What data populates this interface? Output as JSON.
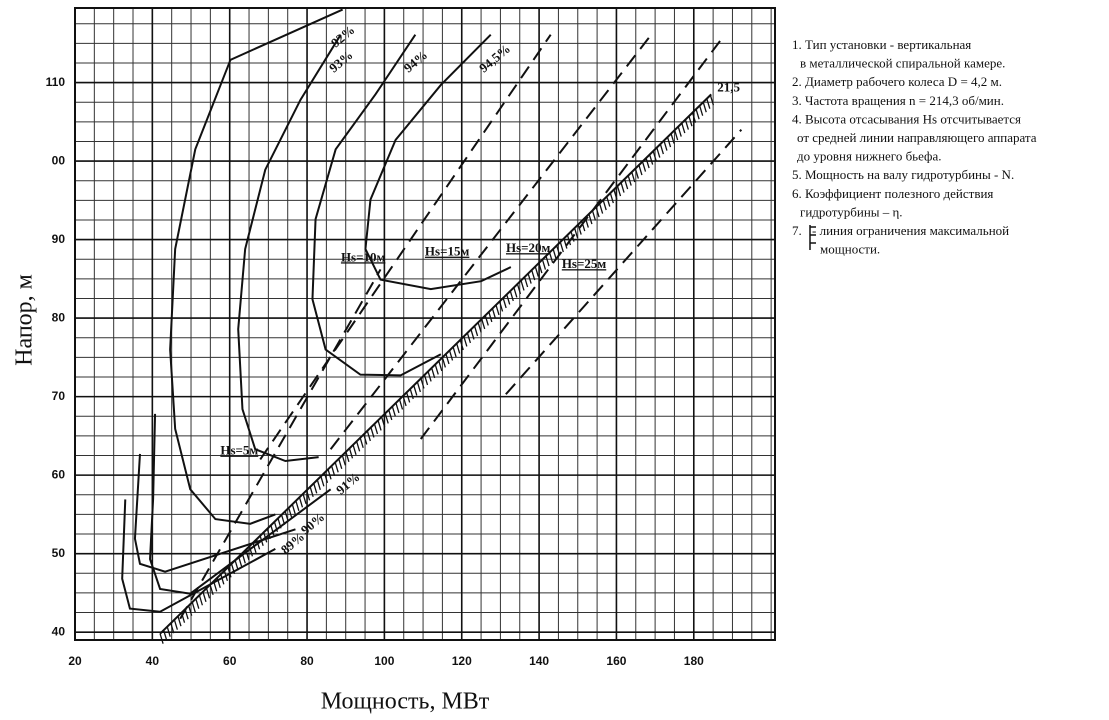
{
  "chart_data": {
    "type": "line",
    "x_label": "Мощность, МВт",
    "y_label": "Напор, м",
    "xlim": [
      20,
      201
    ],
    "ylim": [
      39,
      119.5
    ],
    "xticks": [
      20,
      40,
      60,
      80,
      100,
      120,
      140,
      160,
      180
    ],
    "yticks": [
      40,
      50,
      60,
      70,
      80,
      90,
      {
        "value": 100,
        "label": "00"
      },
      110
    ],
    "grid": true,
    "minor_grid": {
      "x": 5,
      "y": 2.5
    },
    "series": [
      {
        "name": "92%",
        "color": "#111",
        "dash": false,
        "x": [
          89.2,
          60.2,
          51.1,
          45.9,
          44.6,
          45.9,
          49.8,
          56.3,
          65.3,
          71.8
        ],
        "y": [
          119.3,
          112.9,
          101.5,
          88.8,
          76,
          65.9,
          58.2,
          54.4,
          53.8,
          55
        ]
      },
      {
        "name": "93%",
        "color": "#111",
        "dash": false,
        "x": [
          88.7,
          78.3,
          69.2,
          64,
          62.2,
          63.3,
          66.6,
          74.4,
          83
        ],
        "y": [
          116.1,
          107.8,
          98.9,
          88.8,
          78.6,
          68.4,
          63.3,
          61.8,
          62.3
        ]
      },
      {
        "name": "94%",
        "color": "#111",
        "dash": false,
        "x": [
          108,
          97.7,
          87.4,
          82.2,
          81.4,
          84.8,
          93.8,
          104.2,
          114.6
        ],
        "y": [
          116.1,
          108.5,
          101.5,
          92.6,
          82.4,
          76,
          72.8,
          72.7,
          75.4
        ]
      },
      {
        "name": "94,5%",
        "color": "#111",
        "dash": false,
        "x": [
          127.5,
          114.6,
          102.9,
          96.4,
          95.1,
          99,
          112,
          125,
          132.7
        ],
        "y": [
          116.1,
          109.7,
          102.7,
          95.1,
          88.8,
          84.9,
          83.7,
          84.7,
          86.5
        ]
      },
      {
        "name": "91%",
        "color": "#111",
        "dash": false,
        "x": [
          40.7,
          40.2,
          39.4,
          42,
          49.8,
          86.1
        ],
        "y": [
          67.8,
          57,
          49.3,
          45.5,
          44.9,
          58.2
        ]
      },
      {
        "name": "90%",
        "color": "#111",
        "dash": false,
        "x": [
          36.8,
          35.5,
          36.8,
          43.3,
          77
        ],
        "y": [
          62.7,
          51.9,
          48.7,
          47.7,
          53.1
        ]
      },
      {
        "name": "89%",
        "color": "#111",
        "dash": false,
        "x": [
          33,
          32.2,
          34.2,
          42,
          71.8
        ],
        "y": [
          56.9,
          46.8,
          43,
          42.6,
          50.6
        ]
      },
      {
        "name": "Hs=5м",
        "color": "#111",
        "dash": true,
        "x": [
          47.2,
          99
        ],
        "y": [
          41.7,
          86.2
        ]
      },
      {
        "name": "Hs=10м",
        "color": "#111",
        "dash": true,
        "x": [
          67.9,
          143
        ],
        "y": [
          62,
          116.1
        ]
      },
      {
        "name": "Hs=15м",
        "color": "#111",
        "dash": true,
        "x": [
          86.1,
          169
        ],
        "y": [
          63.3,
          116.1
        ]
      },
      {
        "name": "Hs=20м",
        "color": "#111",
        "dash": true,
        "x": [
          109.4,
          187.1
        ],
        "y": [
          64.6,
          115.5
        ]
      },
      {
        "name": "Hs=25м",
        "color": "#111",
        "dash": true,
        "x": [
          131.4,
          192.3
        ],
        "y": [
          70.3,
          104
        ]
      }
    ],
    "limit_line": {
      "label": "21,5",
      "x": [
        42,
        184.5
      ],
      "y": [
        39.8,
        108.5
      ]
    },
    "notes": [
      "1. Тип установки - вертикальная",
      "в металлической спиральной камере.",
      "2. Диаметр рабочего колеса D = 4,2 м.",
      "3. Частота вращения n = 214,3 об/мин.",
      "4. Высота отсасывания Hs отсчитывается",
      "от средней линии направляющего аппарата",
      "до уровня нижнего бьефа.",
      "5. Мощность на валу гидротурбины - N.",
      "6. Коэффициент полезного действия",
      "гидротурбины – η.",
      "7.",
      "- линия ограничения максимальной",
      "мощности."
    ]
  }
}
